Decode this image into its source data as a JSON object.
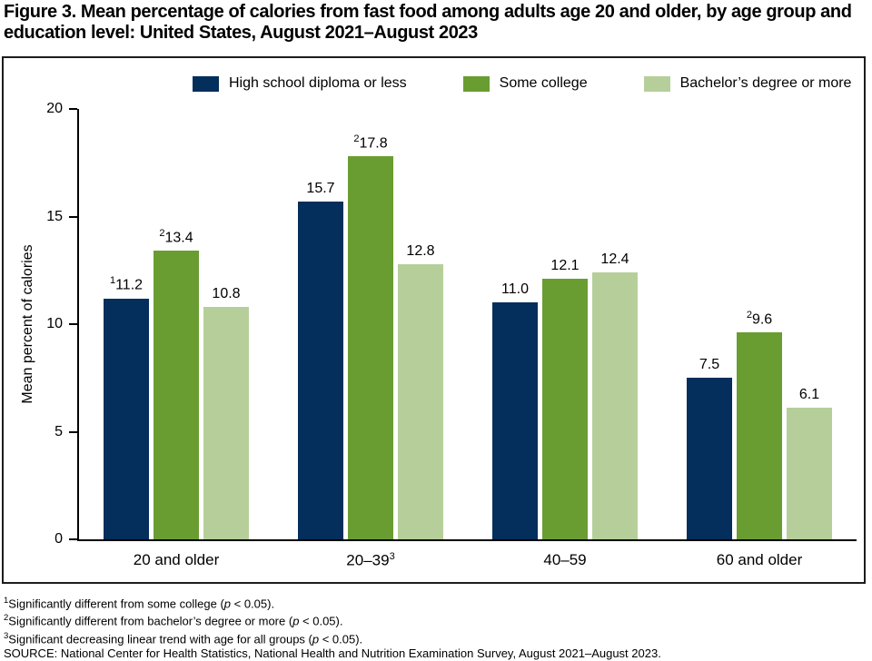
{
  "chart_data": {
    "type": "bar",
    "title": "Figure 3. Mean percentage of calories from fast food among adults age 20 and older, by age group and education level: United States, August 2021–August 2023",
    "ylabel": "Mean percent of calories",
    "xlabel": "",
    "ylim": [
      0,
      20
    ],
    "yticks": [
      0,
      5,
      10,
      15,
      20
    ],
    "grid": false,
    "legend_position": "top",
    "categories": [
      {
        "label": "20 and older",
        "sup": ""
      },
      {
        "label": "20–39",
        "sup": "3"
      },
      {
        "label": "40–59",
        "sup": ""
      },
      {
        "label": "60 and older",
        "sup": ""
      }
    ],
    "series": [
      {
        "name": "High school diploma or less",
        "color": "#042e5b",
        "points": [
          {
            "value": 11.2,
            "label": "11.2",
            "sup": "1"
          },
          {
            "value": 15.7,
            "label": "15.7",
            "sup": ""
          },
          {
            "value": 11.0,
            "label": "11.0",
            "sup": ""
          },
          {
            "value": 7.5,
            "label": "7.5",
            "sup": ""
          }
        ]
      },
      {
        "name": "Some college",
        "color": "#6a9d31",
        "points": [
          {
            "value": 13.4,
            "label": "13.4",
            "sup": "2"
          },
          {
            "value": 17.8,
            "label": "17.8",
            "sup": "2"
          },
          {
            "value": 12.1,
            "label": "12.1",
            "sup": ""
          },
          {
            "value": 9.6,
            "label": "9.6",
            "sup": "2"
          }
        ]
      },
      {
        "name": "Bachelor’s degree or more",
        "color": "#b6cf9a",
        "points": [
          {
            "value": 10.8,
            "label": "10.8",
            "sup": ""
          },
          {
            "value": 12.8,
            "label": "12.8",
            "sup": ""
          },
          {
            "value": 12.4,
            "label": "12.4",
            "sup": ""
          },
          {
            "value": 6.1,
            "label": "6.1",
            "sup": ""
          }
        ]
      }
    ]
  },
  "footnotes": [
    {
      "sup": "1",
      "before": "Significantly different from some college (",
      "italic": "p",
      "after": " < 0.05)."
    },
    {
      "sup": "2",
      "before": "Significantly different from bachelor’s degree or more (",
      "italic": "p",
      "after": " < 0.05)."
    },
    {
      "sup": "3",
      "before": "Significant decreasing linear trend with age for all groups (",
      "italic": "p",
      "after": " < 0.05)."
    },
    {
      "sup": "",
      "before": "SOURCE: National Center for Health Statistics, National Health and Nutrition Examination Survey, August 2021–August 2023.",
      "italic": "",
      "after": ""
    }
  ]
}
